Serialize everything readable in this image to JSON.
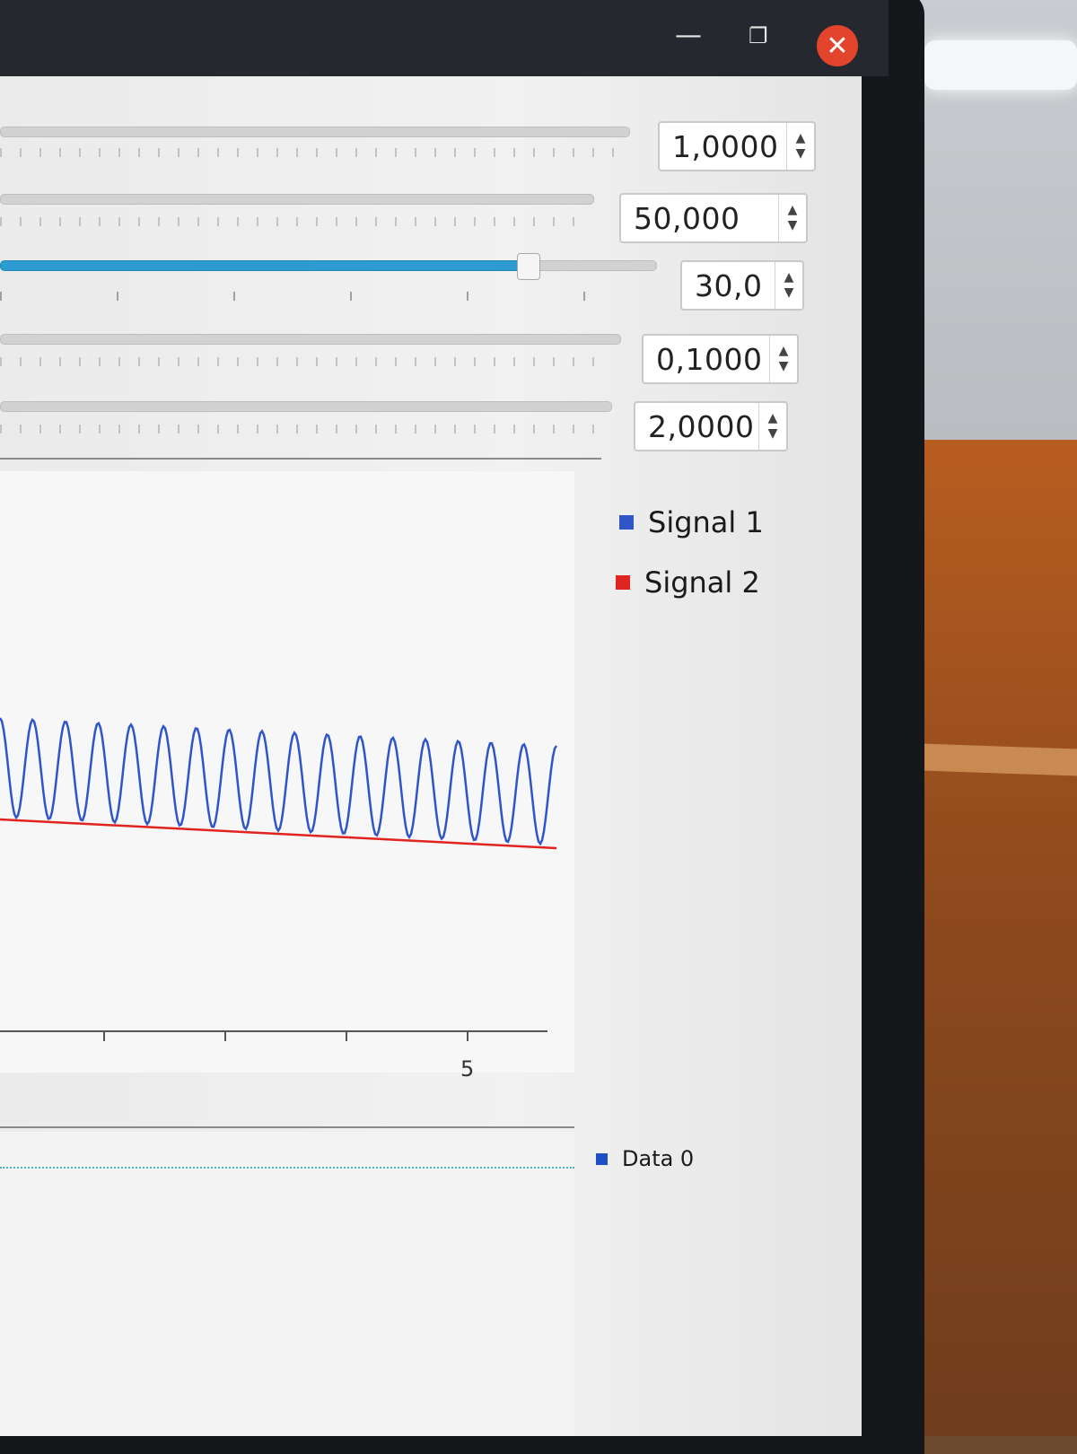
{
  "window": {
    "minimize_icon": "minimize-icon",
    "maximize_icon": "maximize-icon",
    "close_icon": "close-icon"
  },
  "controls": [
    {
      "value": "1,0000"
    },
    {
      "value": "50,000"
    },
    {
      "value": "30,0"
    },
    {
      "value": "0,1000"
    },
    {
      "value": "2,0000"
    }
  ],
  "legend": {
    "signal1": "Signal 1",
    "signal2": "Signal 2",
    "data0": "Data 0"
  },
  "colors": {
    "signal1": "#2f55c8",
    "signal2": "#e0241f",
    "data0": "#1f4fc4",
    "accent": "#2b9bd1"
  },
  "chart_data": [
    {
      "type": "line",
      "x_tick_labels": [
        "5"
      ],
      "series": [
        {
          "name": "Signal 1",
          "color": "#2f55c8",
          "shape": "sine"
        },
        {
          "name": "Signal 2",
          "color": "#e0241f",
          "shape": "flat"
        }
      ]
    },
    {
      "type": "line",
      "series": [
        {
          "name": "Data 0",
          "color": "#1f4fc4",
          "shape": "flat"
        }
      ]
    }
  ]
}
